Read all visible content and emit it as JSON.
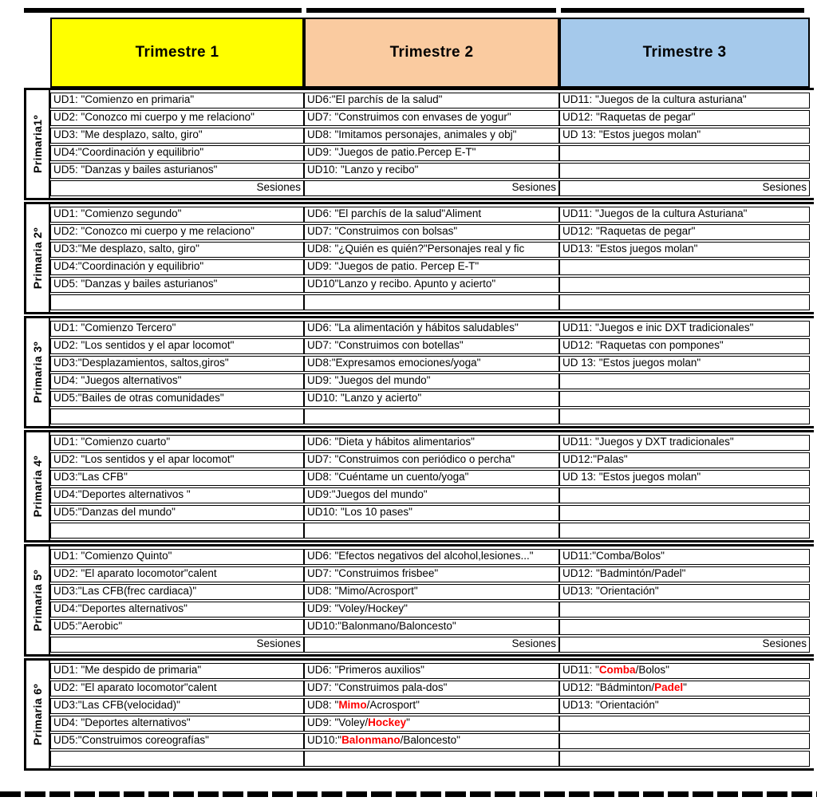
{
  "sesiones_label": "Sesiones",
  "colors": {
    "highlight_red": "#FF0000",
    "border": "#000000"
  },
  "header": {
    "trimesters": [
      {
        "label": "Trimestre 1",
        "color": "#FFFF00"
      },
      {
        "label": "Trimestre 2",
        "color": "#FACBA0"
      },
      {
        "label": "Trimestre 3",
        "color": "#A5C9EB"
      }
    ]
  },
  "groups": [
    {
      "label": "Primaria1º",
      "cols": [
        [
          {
            "parts": [
              {
                "t": "UD1: \"Comienzo en primaria\""
              }
            ]
          },
          {
            "parts": [
              {
                "t": "UD2: \"Conozco mi cuerpo y me relaciono\""
              }
            ]
          },
          {
            "parts": [
              {
                "t": "UD3: \"Me desplazo, salto, giro\""
              }
            ]
          },
          {
            "parts": [
              {
                "t": "UD4:\"Coordinación y equilibrio\""
              }
            ]
          },
          {
            "parts": [
              {
                "t": "UD5: \"Danzas y bailes asturianos\""
              }
            ]
          },
          {
            "sesiones": true
          }
        ],
        [
          {
            "parts": [
              {
                "t": "UD6:\"El parchís de la salud\""
              }
            ]
          },
          {
            "parts": [
              {
                "t": "UD7: \"Construimos con envases de yogur\""
              }
            ]
          },
          {
            "parts": [
              {
                "t": "UD8: \"Imitamos personajes, animales y obj\""
              }
            ]
          },
          {
            "parts": [
              {
                "t": "UD9: \"Juegos de patio.Percep E-T\""
              }
            ]
          },
          {
            "parts": [
              {
                "t": "UD10: \"Lanzo y recibo\""
              }
            ]
          },
          {
            "sesiones": true
          }
        ],
        [
          {
            "parts": [
              {
                "t": "UD11: \"Juegos de la cultura asturiana\""
              }
            ]
          },
          {
            "parts": [
              {
                "t": "UD12: \"Raquetas de pegar\""
              }
            ]
          },
          {
            "parts": [
              {
                "t": "UD 13: \"Estos juegos molan\""
              }
            ]
          },
          {},
          {},
          {
            "sesiones": true
          }
        ]
      ]
    },
    {
      "label": "Primaria 2º",
      "cols": [
        [
          {
            "parts": [
              {
                "t": "UD1: \"Comienzo segundo\""
              }
            ]
          },
          {
            "parts": [
              {
                "t": "UD2: \"Conozco mi cuerpo y me relaciono\""
              }
            ]
          },
          {
            "parts": [
              {
                "t": "UD3:\"Me desplazo, salto, giro\""
              }
            ]
          },
          {
            "parts": [
              {
                "t": "UD4:\"Coordinación y equilibrio\""
              }
            ]
          },
          {
            "parts": [
              {
                "t": "UD5: \"Danzas y bailes asturianos\""
              }
            ]
          },
          {}
        ],
        [
          {
            "parts": [
              {
                "t": "UD6: \"El parchís de la salud\"Aliment"
              }
            ]
          },
          {
            "parts": [
              {
                "t": "UD7: \"Construimos con bolsas\""
              }
            ]
          },
          {
            "parts": [
              {
                "t": "UD8: \"¿Quién es quién?\"Personajes real y fic"
              }
            ]
          },
          {
            "parts": [
              {
                "t": "UD9: \"Juegos de patio. Percep E-T\""
              }
            ]
          },
          {
            "parts": [
              {
                "t": "UD10\"Lanzo y recibo. Apunto y acierto\""
              }
            ]
          },
          {}
        ],
        [
          {
            "parts": [
              {
                "t": "UD11: \"Juegos de la cultura Asturiana\""
              }
            ]
          },
          {
            "parts": [
              {
                "t": "UD12: \"Raquetas de pegar\""
              }
            ]
          },
          {
            "parts": [
              {
                "t": "UD13: \"Estos juegos molan\""
              }
            ]
          },
          {},
          {},
          {}
        ]
      ]
    },
    {
      "label": "Primaria 3º",
      "cols": [
        [
          {
            "parts": [
              {
                "t": "UD1: \"Comienzo Tercero\""
              }
            ]
          },
          {
            "parts": [
              {
                "t": "UD2: \"Los sentidos y el apar locomot\""
              }
            ]
          },
          {
            "parts": [
              {
                "t": "UD3:\"Desplazamientos, saltos,giros\""
              }
            ]
          },
          {
            "parts": [
              {
                "t": "UD4: \"Juegos alternativos\""
              }
            ]
          },
          {
            "parts": [
              {
                "t": "UD5:\"Bailes de otras comunidades\""
              }
            ]
          },
          {}
        ],
        [
          {
            "parts": [
              {
                "t": "UD6: \"La alimentación y hábitos saludables\""
              }
            ]
          },
          {
            "parts": [
              {
                "t": "UD7: \"Construimos con botellas\""
              }
            ]
          },
          {
            "parts": [
              {
                "t": "UD8:\"Expresamos emociones/yoga\""
              }
            ]
          },
          {
            "parts": [
              {
                "t": "UD9: \"Juegos del mundo\""
              }
            ]
          },
          {
            "parts": [
              {
                "t": "UD10: \"Lanzo y acierto\""
              }
            ]
          },
          {}
        ],
        [
          {
            "parts": [
              {
                "t": "UD11: \"Juegos e inic DXT tradicionales\""
              }
            ]
          },
          {
            "parts": [
              {
                "t": "UD12: \"Raquetas con pompones\""
              }
            ]
          },
          {
            "parts": [
              {
                "t": "UD 13: \"Estos juegos molan\""
              }
            ]
          },
          {},
          {},
          {}
        ]
      ]
    },
    {
      "label": "Primaria 4º",
      "cols": [
        [
          {
            "parts": [
              {
                "t": "UD1: \"Comienzo cuarto\""
              }
            ]
          },
          {
            "parts": [
              {
                "t": "UD2: \"Los sentidos y el apar locomot\""
              }
            ]
          },
          {
            "parts": [
              {
                "t": "UD3:\"Las CFB\""
              }
            ]
          },
          {
            "parts": [
              {
                "t": "UD4:\"Deportes alternativos \""
              }
            ]
          },
          {
            "parts": [
              {
                "t": "UD5:\"Danzas del mundo\""
              }
            ]
          },
          {}
        ],
        [
          {
            "parts": [
              {
                "t": "UD6: \"Dieta y hábitos alimentarios\""
              }
            ]
          },
          {
            "parts": [
              {
                "t": "UD7: \"Construimos con periódico o percha\""
              }
            ]
          },
          {
            "parts": [
              {
                "t": "UD8: \"Cuéntame un cuento/yoga\""
              }
            ]
          },
          {
            "parts": [
              {
                "t": "UD9:\"Juegos del mundo\""
              }
            ]
          },
          {
            "parts": [
              {
                "t": "UD10: \"Los 10 pases\""
              }
            ]
          },
          {}
        ],
        [
          {
            "parts": [
              {
                "t": "UD11: \"Juegos y DXT tradicionales\""
              }
            ]
          },
          {
            "parts": [
              {
                "t": "UD12:\"Palas\""
              }
            ]
          },
          {
            "parts": [
              {
                "t": "UD 13: \"Estos juegos molan\""
              }
            ]
          },
          {},
          {},
          {}
        ]
      ]
    },
    {
      "label": "Primaria 5º",
      "cols": [
        [
          {
            "parts": [
              {
                "t": "UD1: \"Comienzo Quinto\""
              }
            ]
          },
          {
            "parts": [
              {
                "t": "UD2: \"El aparato locomotor\"calent"
              }
            ]
          },
          {
            "parts": [
              {
                "t": "UD3:\"Las CFB(frec cardiaca)\""
              }
            ]
          },
          {
            "parts": [
              {
                "t": "UD4:\"Deportes alternativos\""
              }
            ]
          },
          {
            "parts": [
              {
                "t": "UD5:\"Aerobic\""
              }
            ]
          },
          {
            "sesiones": true
          }
        ],
        [
          {
            "parts": [
              {
                "t": "UD6: \"Efectos negativos del alcohol,lesiones...\""
              }
            ]
          },
          {
            "parts": [
              {
                "t": "UD7: \"Construimos frisbee\""
              }
            ]
          },
          {
            "parts": [
              {
                "t": "UD8: \"Mimo/Acrosport\""
              }
            ]
          },
          {
            "parts": [
              {
                "t": "UD9: \"Voley/Hockey\""
              }
            ]
          },
          {
            "parts": [
              {
                "t": "UD10:\"Balonmano/Baloncesto\""
              }
            ]
          },
          {
            "sesiones": true
          }
        ],
        [
          {
            "parts": [
              {
                "t": "UD11:\"Comba/Bolos\""
              }
            ]
          },
          {
            "parts": [
              {
                "t": "UD12: \"Badmintón/Padel\""
              }
            ]
          },
          {
            "parts": [
              {
                "t": "UD13: \"Orientación\""
              }
            ]
          },
          {},
          {},
          {
            "sesiones": true
          }
        ]
      ]
    },
    {
      "label": "Primaria 6º",
      "cols": [
        [
          {
            "parts": [
              {
                "t": "UD1: \"Me despido de primaria\""
              }
            ]
          },
          {
            "parts": [
              {
                "t": "UD2: \"El aparato locomotor\"calent"
              }
            ]
          },
          {
            "parts": [
              {
                "t": "UD3:\"Las CFB(velocidad)\""
              }
            ]
          },
          {
            "parts": [
              {
                "t": "UD4: \"Deportes alternativos\""
              }
            ]
          },
          {
            "parts": [
              {
                "t": "UD5:\"Construimos coreografías\""
              }
            ]
          },
          {}
        ],
        [
          {
            "parts": [
              {
                "t": "UD6: \"Primeros auxilios\""
              }
            ]
          },
          {
            "parts": [
              {
                "t": "UD7: \"Construimos pala-dos\""
              }
            ]
          },
          {
            "parts": [
              {
                "t": "UD8: \""
              },
              {
                "t": "Mimo",
                "red": true
              },
              {
                "t": "/Acrosport\""
              }
            ]
          },
          {
            "parts": [
              {
                "t": "UD9: \"Voley/"
              },
              {
                "t": "Hockey",
                "red": true
              },
              {
                "t": "\""
              }
            ]
          },
          {
            "parts": [
              {
                "t": "UD10:\""
              },
              {
                "t": "Balonmano",
                "red": true
              },
              {
                "t": "/Baloncesto\""
              }
            ]
          },
          {}
        ],
        [
          {
            "parts": [
              {
                "t": "UD11: \""
              },
              {
                "t": "Comba",
                "red": true
              },
              {
                "t": "/Bolos\""
              }
            ]
          },
          {
            "parts": [
              {
                "t": "UD12: \"Bádminton/"
              },
              {
                "t": "Padel",
                "red": true
              },
              {
                "t": "\""
              }
            ]
          },
          {
            "parts": [
              {
                "t": "UD13: \"Orientación\""
              }
            ]
          },
          {},
          {},
          {}
        ]
      ]
    }
  ]
}
